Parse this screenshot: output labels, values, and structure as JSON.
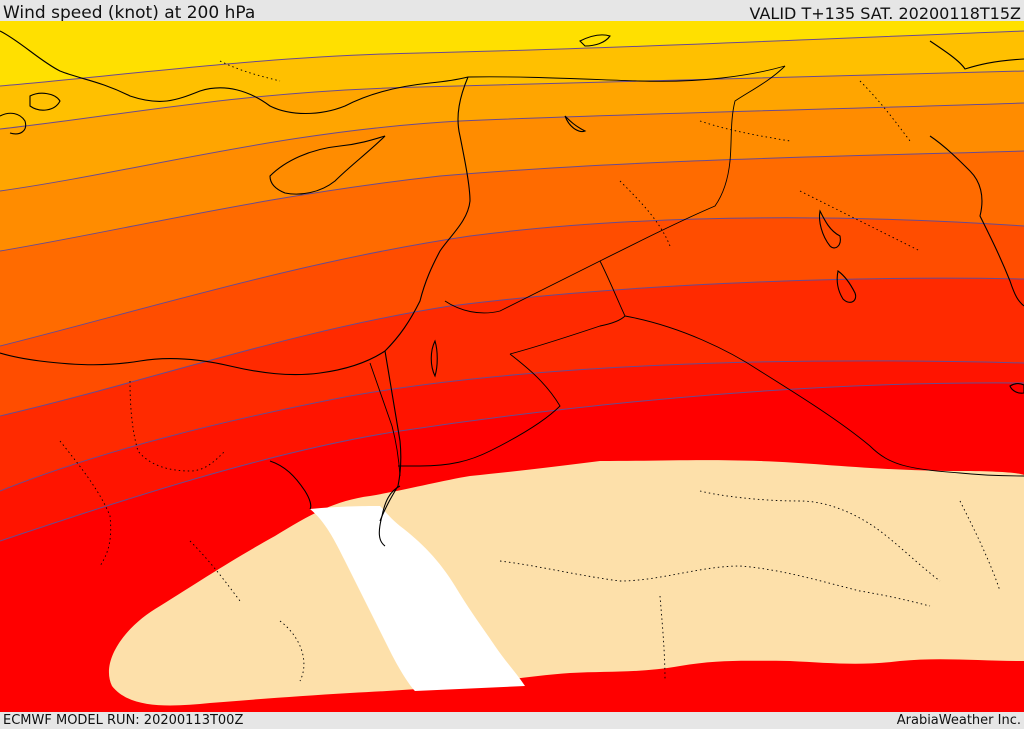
{
  "header": {
    "title": "Wind speed (knot) at 200 hPa",
    "valid": "VALID T+135 SAT. 20200118T15Z"
  },
  "footer": {
    "model_run": "ECMWF MODEL RUN: 20200113T00Z",
    "credit": "ArabiaWeather Inc."
  },
  "map": {
    "variable": "wind speed",
    "units": "knot",
    "level_hpa": 200,
    "band_colors": [
      "#ffe000",
      "#ffc000",
      "#ffa500",
      "#ff8c00",
      "#ff6b00",
      "#ff4d00",
      "#ff2a00",
      "#ff1400",
      "#ff0000"
    ],
    "calm_color": "#fde0aa",
    "sea_color": "#ffffff",
    "contour_color": "#6a4a8f",
    "coast_color": "#000000",
    "border_style": "dotted",
    "icons": [
      "coastline",
      "country-border",
      "wind-speed-contour"
    ]
  }
}
